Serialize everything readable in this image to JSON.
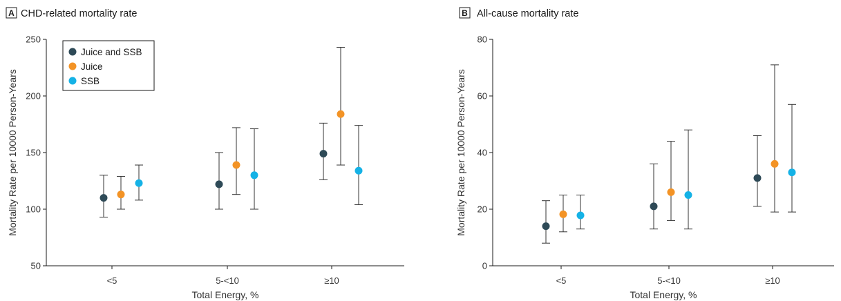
{
  "chart_data": [
    {
      "type": "scatter",
      "panel_letter": "A",
      "title": "CHD-related mortality rate",
      "xlabel": "Total Energy, %",
      "ylabel": "Mortality Rate per 10000 Person-Years",
      "categories": [
        "<5",
        "5-<10",
        "≥10"
      ],
      "ylim": [
        50,
        250
      ],
      "yticks": [
        50,
        100,
        150,
        200,
        250
      ],
      "grid": false,
      "legend_position": "top-left",
      "series": [
        {
          "name": "Juice and SSB",
          "color": "#2e4a57",
          "values": [
            110,
            122,
            149
          ],
          "lower": [
            93,
            100,
            126
          ],
          "upper": [
            130,
            150,
            176
          ]
        },
        {
          "name": "Juice",
          "color": "#f39325",
          "values": [
            113,
            139,
            184
          ],
          "lower": [
            100,
            113,
            139
          ],
          "upper": [
            129,
            172,
            243
          ]
        },
        {
          "name": "SSB",
          "color": "#15b2e6",
          "values": [
            123,
            130,
            134
          ],
          "lower": [
            108,
            100,
            104
          ],
          "upper": [
            139,
            171,
            174
          ]
        }
      ]
    },
    {
      "type": "scatter",
      "panel_letter": "B",
      "title": "All-cause mortality rate",
      "xlabel": "Total Energy, %",
      "ylabel": "Mortality Rate per 10000 Person-Years",
      "categories": [
        "<5",
        "5-<10",
        "≥10"
      ],
      "ylim": [
        0,
        80
      ],
      "yticks": [
        0,
        20,
        40,
        60,
        80
      ],
      "grid": false,
      "series": [
        {
          "name": "Juice and SSB",
          "color": "#2e4a57",
          "values": [
            14,
            21,
            31
          ],
          "lower": [
            8,
            13,
            21
          ],
          "upper": [
            23,
            36,
            46
          ]
        },
        {
          "name": "Juice",
          "color": "#f39325",
          "values": [
            18.2,
            26,
            36
          ],
          "lower": [
            12,
            16,
            19
          ],
          "upper": [
            25,
            44,
            71
          ]
        },
        {
          "name": "SSB",
          "color": "#15b2e6",
          "values": [
            17.8,
            25,
            33
          ],
          "lower": [
            13,
            13,
            19
          ],
          "upper": [
            25,
            48,
            57
          ]
        }
      ]
    }
  ]
}
